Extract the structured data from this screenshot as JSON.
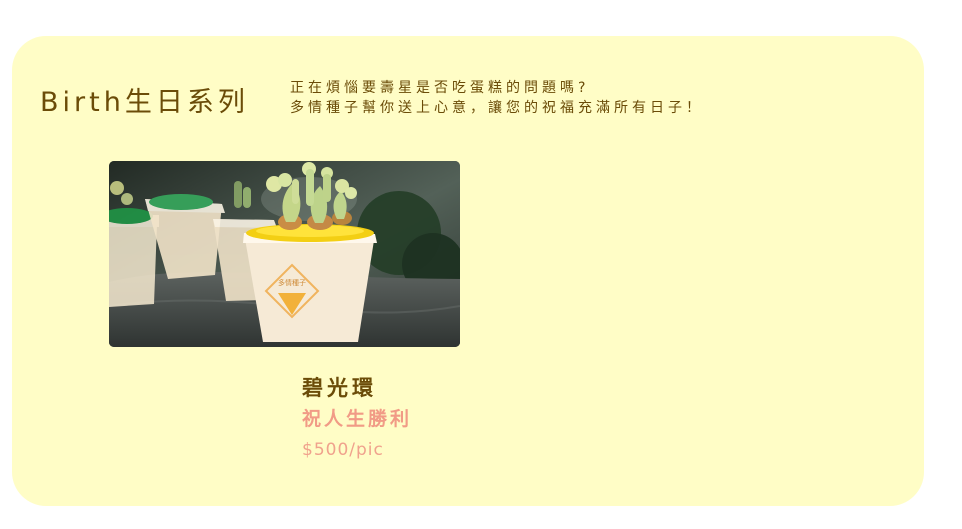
{
  "section": {
    "title": "Birth生日系列",
    "intro_line_1": "正在煩惱要壽星是否吃蛋糕的問題嗎?",
    "intro_line_2": "多情種子幫你送上心意，讓您的祝福充滿所有日子！"
  },
  "product": {
    "name": "碧光環",
    "meaning": "祝人生勝利",
    "price": "$500/pic"
  },
  "colors": {
    "card_background": "#fffdc6",
    "title_text": "#6b4c08",
    "accent_text": "#f19b86",
    "page_background": "#ffffff"
  }
}
